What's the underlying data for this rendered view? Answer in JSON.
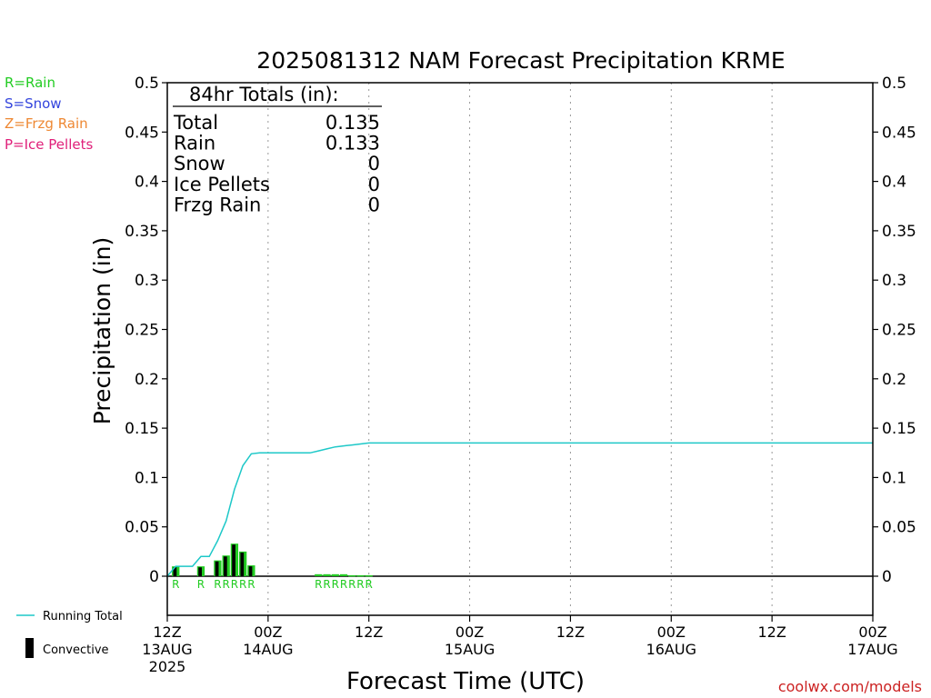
{
  "legend": {
    "rain": "R=Rain",
    "snow": "S=Snow",
    "frzg": "Z=Frzg Rain",
    "ice": "P=Ice Pellets",
    "running_total": "Running Total",
    "convective": "Convective"
  },
  "totals": {
    "header": "84hr Totals (in):",
    "rows": [
      {
        "label": "Total",
        "value": "0.135"
      },
      {
        "label": "Rain",
        "value": "0.133"
      },
      {
        "label": "Snow",
        "value": "0"
      },
      {
        "label": "Ice Pellets",
        "value": "0"
      },
      {
        "label": "Frzg Rain",
        "value": "0"
      }
    ]
  },
  "credit": "coolwx.com/models",
  "colors": {
    "rain": "#22cc22",
    "snow": "#3344dd",
    "frzg": "#ee8833",
    "ice": "#e0207a",
    "running_total": "#1ec8c8",
    "convective": "#000000",
    "credit": "#cc2222"
  },
  "chart_data": {
    "type": "bar",
    "title": "2025081312 NAM Forecast Precipitation KRME",
    "xlabel": "Forecast Time (UTC)",
    "ylabel": "Precipitation (in)",
    "ylim": [
      0,
      0.5
    ],
    "xlim_hours": [
      0,
      84
    ],
    "y_ticks": [
      "0",
      "0.05",
      "0.1",
      "0.15",
      "0.2",
      "0.25",
      "0.3",
      "0.35",
      "0.4",
      "0.45",
      "0.5"
    ],
    "x_ticks": [
      {
        "hour": 0,
        "lines": [
          "12Z",
          "13AUG",
          "2025"
        ]
      },
      {
        "hour": 12,
        "lines": [
          "00Z",
          "14AUG"
        ]
      },
      {
        "hour": 24,
        "lines": [
          "12Z"
        ]
      },
      {
        "hour": 36,
        "lines": [
          "00Z",
          "15AUG"
        ]
      },
      {
        "hour": 48,
        "lines": [
          "12Z"
        ]
      },
      {
        "hour": 60,
        "lines": [
          "00Z",
          "16AUG"
        ]
      },
      {
        "hour": 72,
        "lines": [
          "12Z"
        ]
      },
      {
        "hour": 84,
        "lines": [
          "00Z",
          "17AUG"
        ]
      }
    ],
    "bar_width_hours": 0.9,
    "rain_bars": [
      {
        "hour": 1,
        "value": 0.01
      },
      {
        "hour": 4,
        "value": 0.01
      },
      {
        "hour": 6,
        "value": 0.016
      },
      {
        "hour": 7,
        "value": 0.021
      },
      {
        "hour": 8,
        "value": 0.033
      },
      {
        "hour": 9,
        "value": 0.025
      },
      {
        "hour": 10,
        "value": 0.011
      },
      {
        "hour": 18,
        "value": 0.002
      },
      {
        "hour": 19,
        "value": 0.002
      },
      {
        "hour": 20,
        "value": 0.002
      },
      {
        "hour": 21,
        "value": 0.002
      },
      {
        "hour": 22,
        "value": 0.001
      },
      {
        "hour": 23,
        "value": 0.001
      },
      {
        "hour": 24,
        "value": 0.001
      }
    ],
    "convective_bars": [
      {
        "hour": 1,
        "value": 0.009
      },
      {
        "hour": 4,
        "value": 0.009
      },
      {
        "hour": 6,
        "value": 0.015
      },
      {
        "hour": 7,
        "value": 0.02
      },
      {
        "hour": 8,
        "value": 0.032
      },
      {
        "hour": 9,
        "value": 0.024
      },
      {
        "hour": 10,
        "value": 0.01
      }
    ],
    "type_markers": [
      {
        "hour": 1,
        "text": "R"
      },
      {
        "hour": 4,
        "text": "R"
      },
      {
        "hour": 6,
        "text": "R"
      },
      {
        "hour": 7,
        "text": "R"
      },
      {
        "hour": 8,
        "text": "R"
      },
      {
        "hour": 9,
        "text": "R"
      },
      {
        "hour": 10,
        "text": "R"
      },
      {
        "hour": 18,
        "text": "R"
      },
      {
        "hour": 19,
        "text": "R"
      },
      {
        "hour": 20,
        "text": "R"
      },
      {
        "hour": 21,
        "text": "R"
      },
      {
        "hour": 22,
        "text": "R"
      },
      {
        "hour": 23,
        "text": "R"
      },
      {
        "hour": 24,
        "text": "R"
      }
    ],
    "running_total": {
      "name": "Running Total",
      "x": [
        0,
        1,
        2,
        3,
        4,
        5,
        6,
        7,
        8,
        9,
        10,
        11,
        12,
        13,
        14,
        15,
        16,
        17,
        18,
        19,
        20,
        21,
        22,
        23,
        24,
        25,
        84
      ],
      "y": [
        0,
        0.01,
        0.01,
        0.01,
        0.02,
        0.02,
        0.036,
        0.056,
        0.088,
        0.112,
        0.124,
        0.125,
        0.125,
        0.125,
        0.125,
        0.125,
        0.125,
        0.125,
        0.127,
        0.129,
        0.131,
        0.132,
        0.133,
        0.134,
        0.135,
        0.135,
        0.135
      ]
    }
  }
}
